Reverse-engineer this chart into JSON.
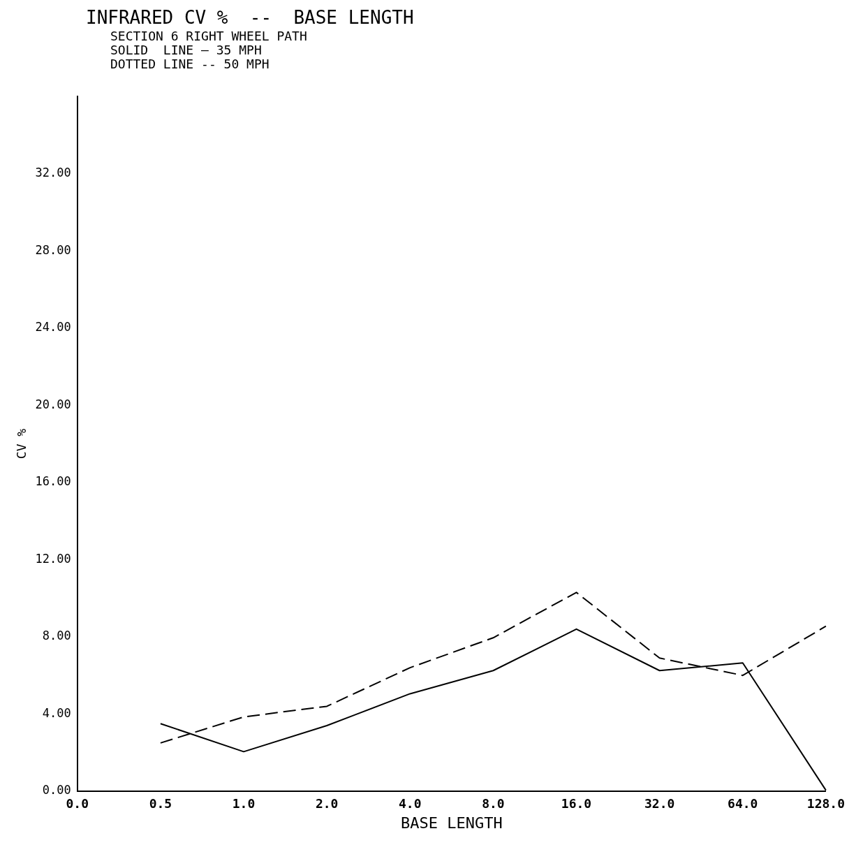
{
  "chart_data": {
    "type": "line",
    "title": "INFRARED CV %  --  BASE LENGTH",
    "subtitle": "SECTION 6 RIGHT WHEEL PATH",
    "annotations": [
      "SOLID  LINE — 35 MPH",
      "DOTTED LINE -- 50 MPH"
    ],
    "xlabel": "BASE LENGTH",
    "ylabel": "CV %",
    "categories": [
      "0.0",
      "0.5",
      "1.0",
      "2.0",
      "4.0",
      "8.0",
      "16.0",
      "32.0",
      "64.0",
      "128.0"
    ],
    "series": [
      {
        "color": "#000000",
        "line_style": "solid",
        "values": [
          null,
          3.5,
          2.05,
          3.4,
          5.05,
          6.25,
          8.4,
          6.25,
          6.65,
          0.05
        ]
      },
      {
        "color": "#000000",
        "line_style": "dashed",
        "values": [
          null,
          2.5,
          3.85,
          4.4,
          6.4,
          7.95,
          10.3,
          6.9,
          6.0,
          8.55
        ]
      }
    ],
    "ylim": [
      0,
      36
    ],
    "yticks": [
      {
        "value": 0,
        "label": "0.00"
      },
      {
        "value": 4,
        "label": "4.00"
      },
      {
        "value": 8,
        "label": "8.00"
      },
      {
        "value": 12,
        "label": "12.00"
      },
      {
        "value": 16,
        "label": "16.00"
      },
      {
        "value": 20,
        "label": "20.00"
      },
      {
        "value": 24,
        "label": "24.00"
      },
      {
        "value": 28,
        "label": "28.00"
      },
      {
        "value": 32,
        "label": "32.00"
      }
    ],
    "grid": false,
    "legend": false,
    "marker": "none"
  }
}
